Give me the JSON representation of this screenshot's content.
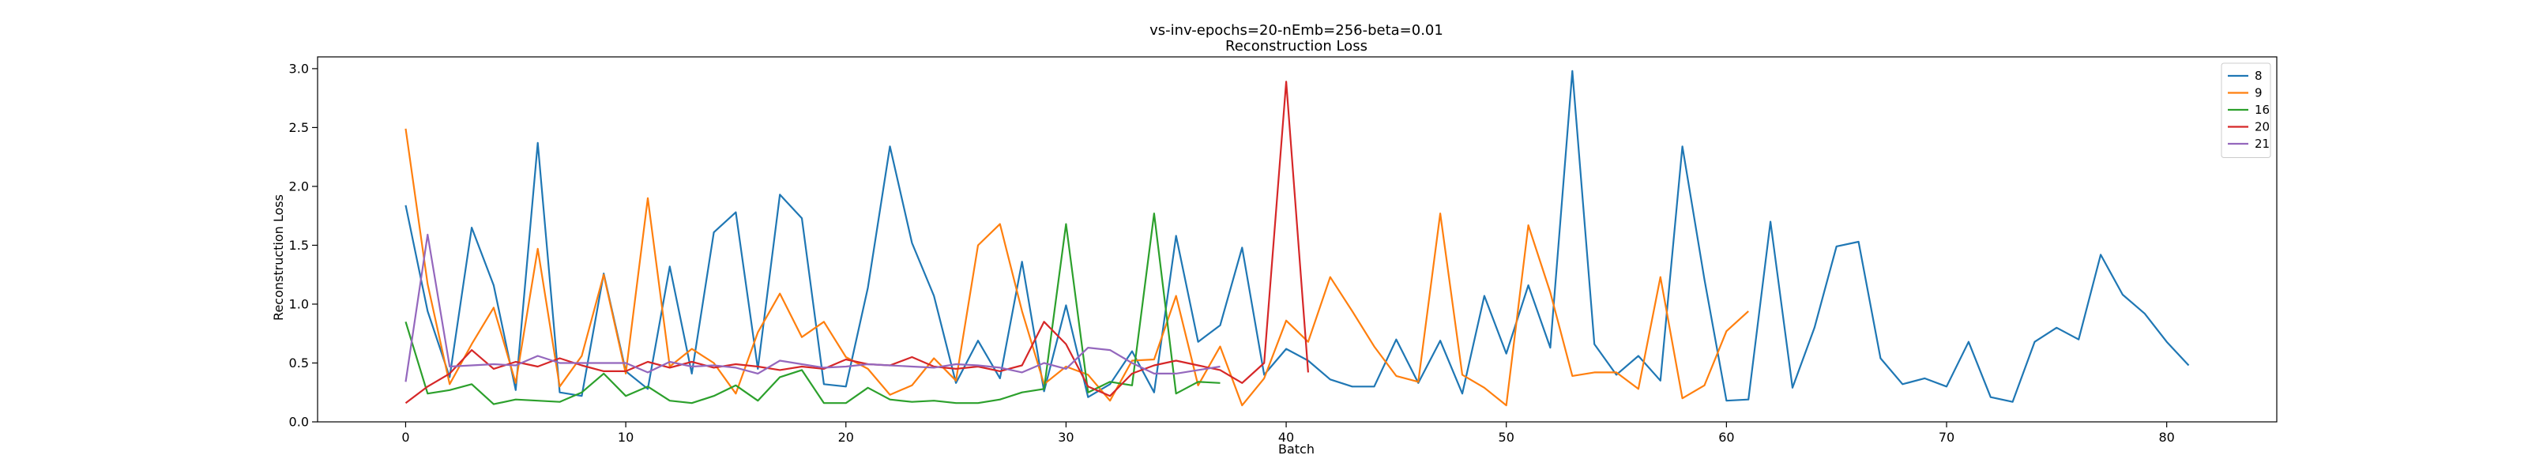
{
  "chart_data": {
    "type": "line",
    "title": "vs-inv-epochs=20-nEmb=256-beta=0.01",
    "subtitle": "Reconstruction Loss",
    "xlabel": "Batch",
    "ylabel": "Reconstruction Loss",
    "xlim": [
      -4,
      85
    ],
    "ylim": [
      0,
      3.1
    ],
    "xticks": [
      0,
      10,
      20,
      30,
      40,
      50,
      60,
      70,
      80
    ],
    "yticks": [
      0.0,
      0.5,
      1.0,
      1.5,
      2.0,
      2.5,
      3.0
    ],
    "ytick_labels": [
      "0.0",
      "0.5",
      "1.0",
      "1.5",
      "2.0",
      "2.5",
      "3.0"
    ],
    "grid": false,
    "legend_position": "top-right",
    "series": [
      {
        "name": "8",
        "color": "#1f77b4",
        "values": [
          1.84,
          0.94,
          0.38,
          1.65,
          1.16,
          0.27,
          2.37,
          0.25,
          0.22,
          1.26,
          0.43,
          0.28,
          1.32,
          0.41,
          1.61,
          1.78,
          0.45,
          1.93,
          1.73,
          0.32,
          0.3,
          1.14,
          2.34,
          1.52,
          1.07,
          0.33,
          0.69,
          0.37,
          1.36,
          0.26,
          0.99,
          0.21,
          0.32,
          0.6,
          0.25,
          1.58,
          0.68,
          0.82,
          1.48,
          0.4,
          0.62,
          0.52,
          0.36,
          0.3,
          0.3,
          0.7,
          0.33,
          0.69,
          0.24,
          1.07,
          0.58,
          1.16,
          0.63,
          2.98,
          0.66,
          0.4,
          0.56,
          0.35,
          2.34,
          1.21,
          0.18,
          0.19,
          1.7,
          0.29,
          0.8,
          1.49,
          1.53,
          0.54,
          0.32,
          0.37,
          0.3,
          0.68,
          0.21,
          0.17,
          0.68,
          0.8,
          0.7,
          1.42,
          1.08,
          0.92,
          0.68,
          0.48
        ]
      },
      {
        "name": "9",
        "color": "#ff7f0e",
        "values": [
          2.49,
          1.17,
          0.32,
          0.66,
          0.97,
          0.33,
          1.47,
          0.3,
          0.56,
          1.25,
          0.41,
          1.9,
          0.47,
          0.62,
          0.5,
          0.24,
          0.76,
          1.09,
          0.72,
          0.85,
          0.55,
          0.45,
          0.23,
          0.31,
          0.54,
          0.35,
          1.5,
          1.68,
          0.94,
          0.32,
          0.47,
          0.4,
          0.18,
          0.52,
          0.53,
          1.07,
          0.31,
          0.64,
          0.14,
          0.37,
          0.86,
          0.68,
          1.23,
          0.94,
          0.64,
          0.39,
          0.34,
          1.77,
          0.4,
          0.29,
          0.14,
          1.67,
          1.1,
          0.39,
          0.42,
          0.42,
          0.28,
          1.23,
          0.2,
          0.31,
          0.77,
          0.94
        ]
      },
      {
        "name": "16",
        "color": "#2ca02c",
        "values": [
          0.85,
          0.24,
          0.27,
          0.32,
          0.15,
          0.19,
          0.18,
          0.17,
          0.25,
          0.41,
          0.22,
          0.3,
          0.18,
          0.16,
          0.22,
          0.31,
          0.18,
          0.38,
          0.44,
          0.16,
          0.16,
          0.29,
          0.19,
          0.17,
          0.18,
          0.16,
          0.16,
          0.19,
          0.25,
          0.28,
          1.68,
          0.25,
          0.34,
          0.31,
          1.77,
          0.24,
          0.34,
          0.33
        ]
      },
      {
        "name": "20",
        "color": "#d62728",
        "values": [
          0.16,
          0.3,
          0.41,
          0.61,
          0.45,
          0.51,
          0.47,
          0.54,
          0.48,
          0.43,
          0.43,
          0.51,
          0.46,
          0.51,
          0.46,
          0.49,
          0.47,
          0.44,
          0.47,
          0.45,
          0.53,
          0.49,
          0.48,
          0.55,
          0.47,
          0.45,
          0.47,
          0.43,
          0.48,
          0.85,
          0.66,
          0.3,
          0.22,
          0.41,
          0.48,
          0.52,
          0.48,
          0.44,
          0.33,
          0.5,
          2.89,
          0.42
        ]
      },
      {
        "name": "21",
        "color": "#9467bd",
        "values": [
          0.34,
          1.59,
          0.47,
          0.48,
          0.49,
          0.48,
          0.56,
          0.5,
          0.5,
          0.5,
          0.5,
          0.42,
          0.51,
          0.47,
          0.48,
          0.46,
          0.41,
          0.52,
          0.49,
          0.46,
          0.47,
          0.49,
          0.48,
          0.47,
          0.46,
          0.49,
          0.48,
          0.46,
          0.42,
          0.5,
          0.45,
          0.63,
          0.61,
          0.5,
          0.41,
          0.41,
          0.44,
          0.47
        ]
      }
    ]
  }
}
